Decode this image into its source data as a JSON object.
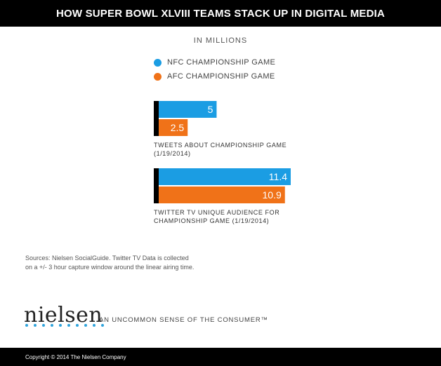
{
  "header": {
    "title": "HOW SUPER BOWL XLVIII TEAMS STACK UP IN DIGITAL MEDIA"
  },
  "chart_data": {
    "type": "bar",
    "orientation": "horizontal",
    "subtitle": "IN MILLIONS",
    "categories": [
      "TWEETS ABOUT CHAMPIONSHIP GAME (1/19/2014)",
      "TWITTER TV UNIQUE AUDIENCE FOR CHAMPIONSHIP GAME (1/19/2014)"
    ],
    "series": [
      {
        "name": "NFC CHAMPIONSHIP GAME",
        "color": "#1b9de3",
        "values": [
          5,
          11.4
        ],
        "labels": [
          "5",
          "11.4"
        ]
      },
      {
        "name": "AFC CHAMPIONSHIP GAME",
        "color": "#f07218",
        "values": [
          2.5,
          10.9
        ],
        "labels": [
          "2.5",
          "10.9"
        ]
      }
    ],
    "value_labels": "inside-end",
    "legend": "top-left",
    "grid": false,
    "xlim": [
      0,
      11.4
    ]
  },
  "sources": {
    "line1": "Sources: Nielsen SocialGuide. Twitter TV Data is collected",
    "line2": "on a +/- 3 hour capture window around the linear airing time."
  },
  "brand": {
    "logo": "nielsen",
    "tagline": "AN UNCOMMON SENSE OF THE CONSUMER™"
  },
  "footer": {
    "copyright": "Copyright © 2014 The Nielsen Company"
  }
}
